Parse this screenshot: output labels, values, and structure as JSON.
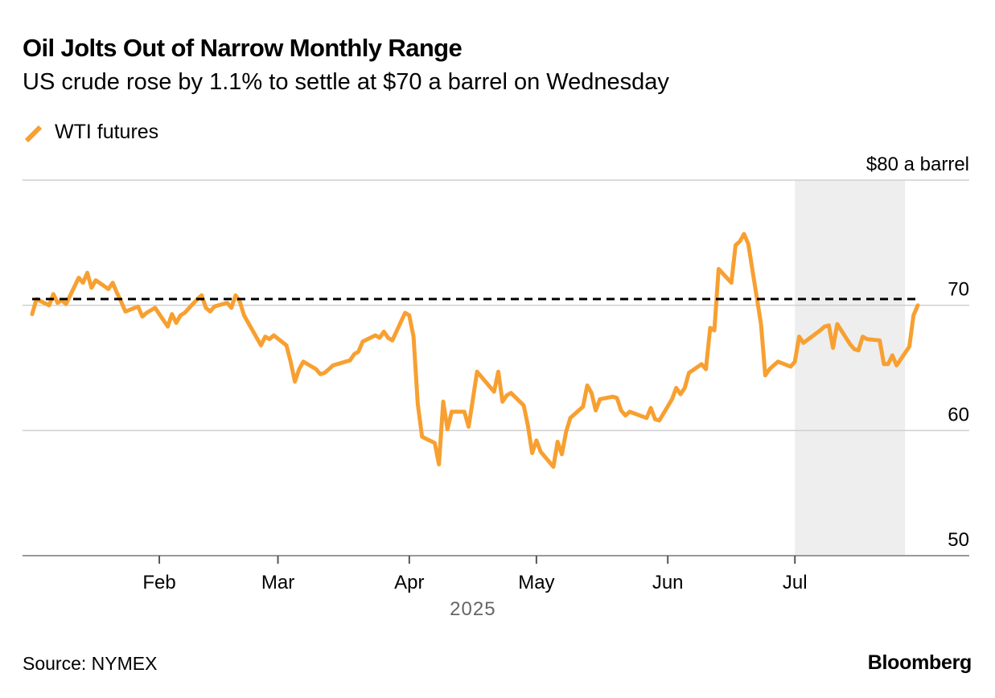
{
  "chart_data": {
    "type": "line",
    "title": "Oil Jolts Out of Narrow Monthly Range",
    "subtitle": "US crude rose by 1.1% to settle at $70 a barrel on Wednesday",
    "ylabel": "$80 a barrel",
    "ylim": [
      50,
      80
    ],
    "y_ticks": [
      50,
      60,
      70
    ],
    "x_range": [
      "2025-01-02",
      "2025-07-30"
    ],
    "x_ticks": [
      {
        "date": "2025-02-01",
        "label": "Feb"
      },
      {
        "date": "2025-03-01",
        "label": "Mar"
      },
      {
        "date": "2025-04-01",
        "label": "Apr"
      },
      {
        "date": "2025-05-01",
        "label": "May"
      },
      {
        "date": "2025-06-01",
        "label": "Jun"
      },
      {
        "date": "2025-07-01",
        "label": "Jul"
      }
    ],
    "x_axis_year": "2025",
    "legend_position": "top-left",
    "grid": true,
    "reference_line": {
      "value": 70.5,
      "style": "dashed",
      "color": "#000000"
    },
    "shaded_region": {
      "start": "2025-07-01",
      "end": "2025-07-27",
      "color": "#eeeeee"
    },
    "series": [
      {
        "name": "WTI futures",
        "color": "#f7a031",
        "points": [
          [
            "2025-01-02",
            69.3
          ],
          [
            "2025-01-03",
            70.5
          ],
          [
            "2025-01-06",
            70.0
          ],
          [
            "2025-01-07",
            70.9
          ],
          [
            "2025-01-08",
            70.2
          ],
          [
            "2025-01-09",
            70.4
          ],
          [
            "2025-01-10",
            70.1
          ],
          [
            "2025-01-13",
            72.2
          ],
          [
            "2025-01-14",
            71.8
          ],
          [
            "2025-01-15",
            72.6
          ],
          [
            "2025-01-16",
            71.4
          ],
          [
            "2025-01-17",
            72.0
          ],
          [
            "2025-01-20",
            71.3
          ],
          [
            "2025-01-21",
            71.8
          ],
          [
            "2025-01-22",
            71.0
          ],
          [
            "2025-01-23",
            70.3
          ],
          [
            "2025-01-24",
            69.5
          ],
          [
            "2025-01-27",
            69.9
          ],
          [
            "2025-01-28",
            69.1
          ],
          [
            "2025-01-29",
            69.4
          ],
          [
            "2025-01-30",
            69.6
          ],
          [
            "2025-01-31",
            69.8
          ],
          [
            "2025-02-03",
            68.3
          ],
          [
            "2025-02-04",
            69.3
          ],
          [
            "2025-02-05",
            68.6
          ],
          [
            "2025-02-06",
            69.2
          ],
          [
            "2025-02-07",
            69.4
          ],
          [
            "2025-02-10",
            70.5
          ],
          [
            "2025-02-11",
            70.8
          ],
          [
            "2025-02-12",
            69.8
          ],
          [
            "2025-02-13",
            69.5
          ],
          [
            "2025-02-14",
            69.9
          ],
          [
            "2025-02-17",
            70.2
          ],
          [
            "2025-02-18",
            69.8
          ],
          [
            "2025-02-19",
            70.8
          ],
          [
            "2025-02-20",
            70.3
          ],
          [
            "2025-02-21",
            69.2
          ],
          [
            "2025-02-24",
            67.4
          ],
          [
            "2025-02-25",
            66.8
          ],
          [
            "2025-02-26",
            67.5
          ],
          [
            "2025-02-27",
            67.3
          ],
          [
            "2025-02-28",
            67.6
          ],
          [
            "2025-03-03",
            66.8
          ],
          [
            "2025-03-04",
            65.5
          ],
          [
            "2025-03-05",
            63.9
          ],
          [
            "2025-03-06",
            64.9
          ],
          [
            "2025-03-07",
            65.5
          ],
          [
            "2025-03-10",
            64.9
          ],
          [
            "2025-03-11",
            64.5
          ],
          [
            "2025-03-12",
            64.6
          ],
          [
            "2025-03-13",
            64.9
          ],
          [
            "2025-03-14",
            65.2
          ],
          [
            "2025-03-17",
            65.5
          ],
          [
            "2025-03-18",
            65.6
          ],
          [
            "2025-03-19",
            66.1
          ],
          [
            "2025-03-20",
            66.3
          ],
          [
            "2025-03-21",
            67.1
          ],
          [
            "2025-03-24",
            67.6
          ],
          [
            "2025-03-25",
            67.4
          ],
          [
            "2025-03-26",
            67.9
          ],
          [
            "2025-03-27",
            67.4
          ],
          [
            "2025-03-28",
            67.2
          ],
          [
            "2025-03-31",
            69.4
          ],
          [
            "2025-04-01",
            69.2
          ],
          [
            "2025-04-02",
            67.5
          ],
          [
            "2025-04-03",
            62.1
          ],
          [
            "2025-04-04",
            59.5
          ],
          [
            "2025-04-07",
            59.0
          ],
          [
            "2025-04-08",
            57.3
          ],
          [
            "2025-04-09",
            62.3
          ],
          [
            "2025-04-10",
            60.1
          ],
          [
            "2025-04-11",
            61.5
          ],
          [
            "2025-04-14",
            61.5
          ],
          [
            "2025-04-15",
            60.3
          ],
          [
            "2025-04-16",
            62.5
          ],
          [
            "2025-04-17",
            64.7
          ],
          [
            "2025-04-21",
            63.1
          ],
          [
            "2025-04-22",
            64.7
          ],
          [
            "2025-04-23",
            62.3
          ],
          [
            "2025-04-24",
            62.8
          ],
          [
            "2025-04-25",
            63.0
          ],
          [
            "2025-04-28",
            62.0
          ],
          [
            "2025-04-29",
            60.4
          ],
          [
            "2025-04-30",
            58.2
          ],
          [
            "2025-05-01",
            59.2
          ],
          [
            "2025-05-02",
            58.3
          ],
          [
            "2025-05-05",
            57.1
          ],
          [
            "2025-05-06",
            59.1
          ],
          [
            "2025-05-07",
            58.1
          ],
          [
            "2025-05-08",
            59.9
          ],
          [
            "2025-05-09",
            61.0
          ],
          [
            "2025-05-12",
            61.9
          ],
          [
            "2025-05-13",
            63.6
          ],
          [
            "2025-05-14",
            63.0
          ],
          [
            "2025-05-15",
            61.6
          ],
          [
            "2025-05-16",
            62.5
          ],
          [
            "2025-05-19",
            62.7
          ],
          [
            "2025-05-20",
            62.6
          ],
          [
            "2025-05-21",
            61.6
          ],
          [
            "2025-05-22",
            61.2
          ],
          [
            "2025-05-23",
            61.5
          ],
          [
            "2025-05-27",
            61.0
          ],
          [
            "2025-05-28",
            61.8
          ],
          [
            "2025-05-29",
            60.9
          ],
          [
            "2025-05-30",
            60.8
          ],
          [
            "2025-06-02",
            62.5
          ],
          [
            "2025-06-03",
            63.4
          ],
          [
            "2025-06-04",
            62.9
          ],
          [
            "2025-06-05",
            63.4
          ],
          [
            "2025-06-06",
            64.6
          ],
          [
            "2025-06-09",
            65.3
          ],
          [
            "2025-06-10",
            64.9
          ],
          [
            "2025-06-11",
            68.2
          ],
          [
            "2025-06-12",
            68.0
          ],
          [
            "2025-06-13",
            72.9
          ],
          [
            "2025-06-16",
            71.8
          ],
          [
            "2025-06-17",
            74.8
          ],
          [
            "2025-06-18",
            75.1
          ],
          [
            "2025-06-19",
            75.7
          ],
          [
            "2025-06-20",
            74.9
          ],
          [
            "2025-06-23",
            68.5
          ],
          [
            "2025-06-24",
            64.4
          ],
          [
            "2025-06-25",
            64.9
          ],
          [
            "2025-06-26",
            65.2
          ],
          [
            "2025-06-27",
            65.5
          ],
          [
            "2025-06-30",
            65.1
          ],
          [
            "2025-07-01",
            65.5
          ],
          [
            "2025-07-02",
            67.5
          ],
          [
            "2025-07-03",
            67.0
          ],
          [
            "2025-07-07",
            68.0
          ],
          [
            "2025-07-08",
            68.3
          ],
          [
            "2025-07-09",
            68.4
          ],
          [
            "2025-07-10",
            66.6
          ],
          [
            "2025-07-11",
            68.5
          ],
          [
            "2025-07-14",
            66.9
          ],
          [
            "2025-07-15",
            66.5
          ],
          [
            "2025-07-16",
            66.4
          ],
          [
            "2025-07-17",
            67.5
          ],
          [
            "2025-07-18",
            67.3
          ],
          [
            "2025-07-21",
            67.2
          ],
          [
            "2025-07-22",
            65.3
          ],
          [
            "2025-07-23",
            65.3
          ],
          [
            "2025-07-24",
            66.0
          ],
          [
            "2025-07-25",
            65.2
          ],
          [
            "2025-07-28",
            66.7
          ],
          [
            "2025-07-29",
            69.2
          ],
          [
            "2025-07-30",
            70.0
          ]
        ]
      }
    ]
  },
  "footer": {
    "source": "Source: NYMEX",
    "brand": "Bloomberg"
  }
}
